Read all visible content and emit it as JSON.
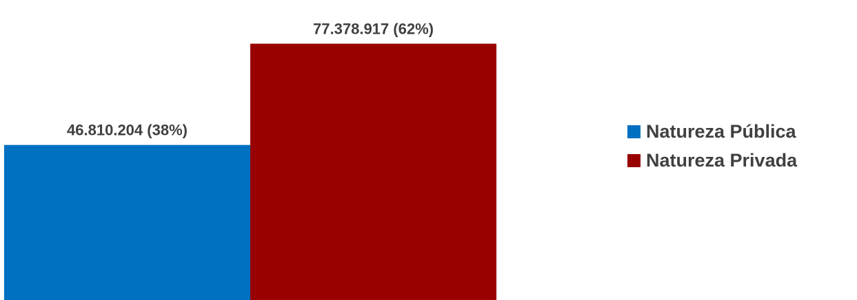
{
  "chart_data": {
    "type": "bar",
    "categories": [
      "Natureza Pública",
      "Natureza Privada"
    ],
    "values": [
      46810204,
      77378917
    ],
    "data_labels": [
      "46.810.204 (38%)",
      "77.378.917 (62%)"
    ],
    "colors": [
      "#0070c0",
      "#990000"
    ],
    "ylim": [
      0,
      86000000
    ],
    "grid": false,
    "legend_position": "right",
    "legend": [
      {
        "label": "Natureza Pública",
        "color": "#0070c0"
      },
      {
        "label": "Natureza Privada",
        "color": "#990000"
      }
    ]
  }
}
